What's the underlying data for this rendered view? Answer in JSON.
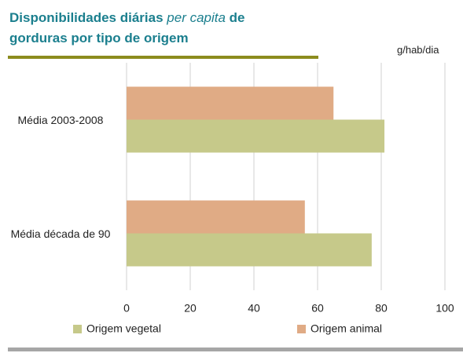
{
  "chart_data": {
    "type": "barh",
    "title": [
      {
        "text": "Disponibilidades diárias "
      },
      {
        "text": "per capita",
        "italic": true
      },
      {
        "text": " de gorduras por tipo de origem"
      }
    ],
    "unit_label": "g/hab/dia",
    "categories": [
      "Média 2003-2008",
      "Média década de 90"
    ],
    "series": [
      {
        "name": "Origem vegetal",
        "color": "#c6c98a",
        "values": [
          81,
          77
        ]
      },
      {
        "name": "Origem animal",
        "color": "#e0ab85",
        "values": [
          65,
          56
        ]
      }
    ],
    "xlim": [
      0,
      100
    ],
    "xticks": [
      0,
      20,
      40,
      60,
      80,
      100
    ],
    "grid": true
  }
}
